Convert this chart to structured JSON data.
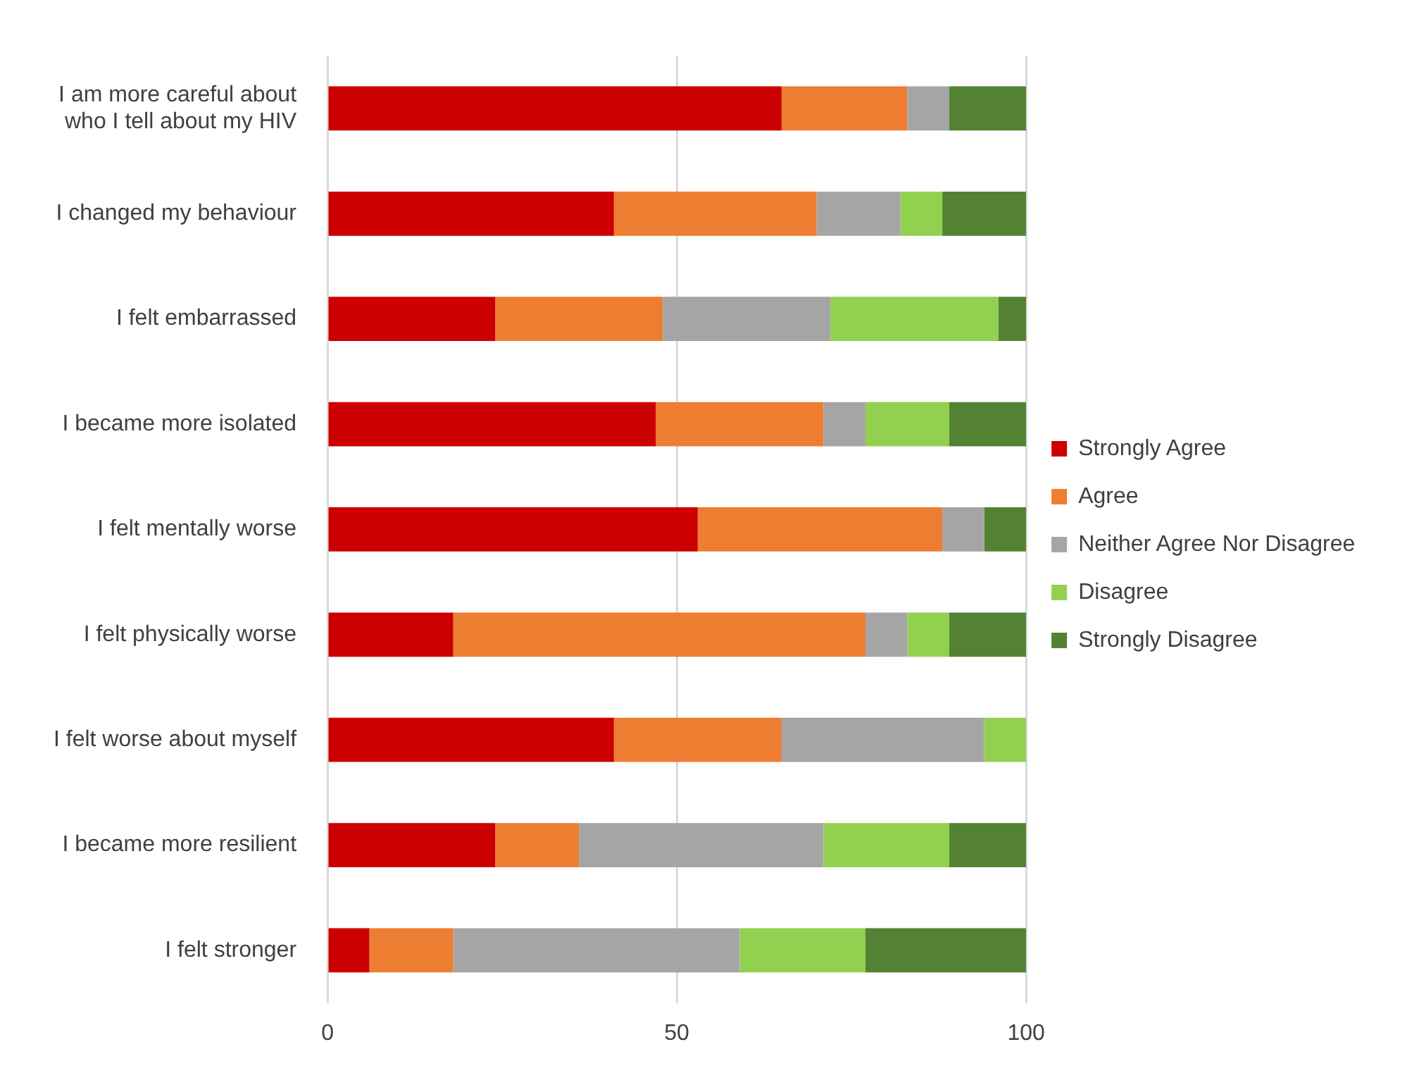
{
  "chart_data": {
    "type": "bar",
    "orientation": "horizontal",
    "stacked": true,
    "categories": [
      "I am more careful about who I tell about my HIV",
      "I changed my behaviour",
      "I felt embarrassed",
      "I became more isolated",
      "I felt mentally worse",
      "I felt physically worse",
      "I felt worse about myself",
      "I became more resilient",
      "I felt stronger"
    ],
    "series": [
      {
        "name": "Strongly Agree",
        "color": "#cc0000",
        "values": [
          65,
          41,
          24,
          47,
          53,
          18,
          41,
          24,
          6
        ]
      },
      {
        "name": "Agree",
        "color": "#ed7d31",
        "values": [
          18,
          29,
          24,
          24,
          35,
          59,
          24,
          12,
          12
        ]
      },
      {
        "name": "Neither Agree Nor Disagree",
        "color": "#a5a5a5",
        "values": [
          6,
          12,
          24,
          6,
          6,
          6,
          29,
          35,
          41
        ]
      },
      {
        "name": "Disagree",
        "color": "#92d050",
        "values": [
          0,
          6,
          24,
          12,
          0,
          6,
          6,
          18,
          18
        ]
      },
      {
        "name": "Strongly Disagree",
        "color": "#548235",
        "values": [
          11,
          12,
          4,
          11,
          6,
          11,
          0,
          11,
          23
        ]
      }
    ],
    "xlim": [
      0,
      100
    ],
    "xticks": [
      0,
      50,
      100
    ],
    "grid": "x",
    "legend": "right"
  }
}
